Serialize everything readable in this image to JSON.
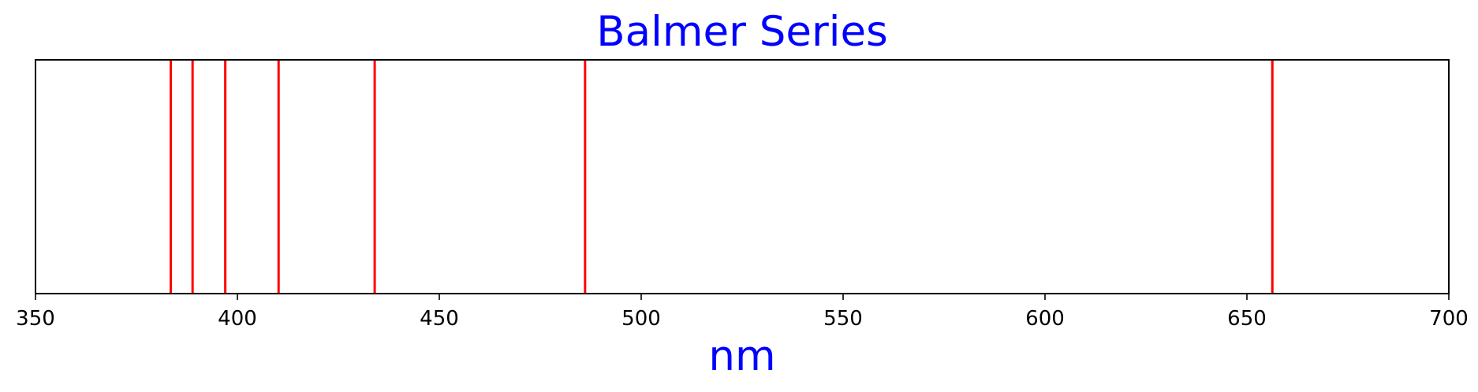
{
  "chart_data": {
    "type": "line",
    "title": "Balmer Series",
    "xlabel": "nm",
    "ylabel": "",
    "xlim": [
      350,
      700
    ],
    "xticks": [
      350,
      400,
      450,
      500,
      550,
      600,
      650,
      700
    ],
    "xtick_labels": [
      "350",
      "400",
      "450",
      "500",
      "550",
      "600",
      "650",
      "700"
    ],
    "lines_nm": [
      656.3,
      486.1,
      434.0,
      410.2,
      397.0,
      388.9,
      383.5
    ],
    "line_color": "#ff0000",
    "title_color": "#0000ff",
    "xlabel_color": "#0000ff",
    "grid": false,
    "y_axis_visible": false
  }
}
